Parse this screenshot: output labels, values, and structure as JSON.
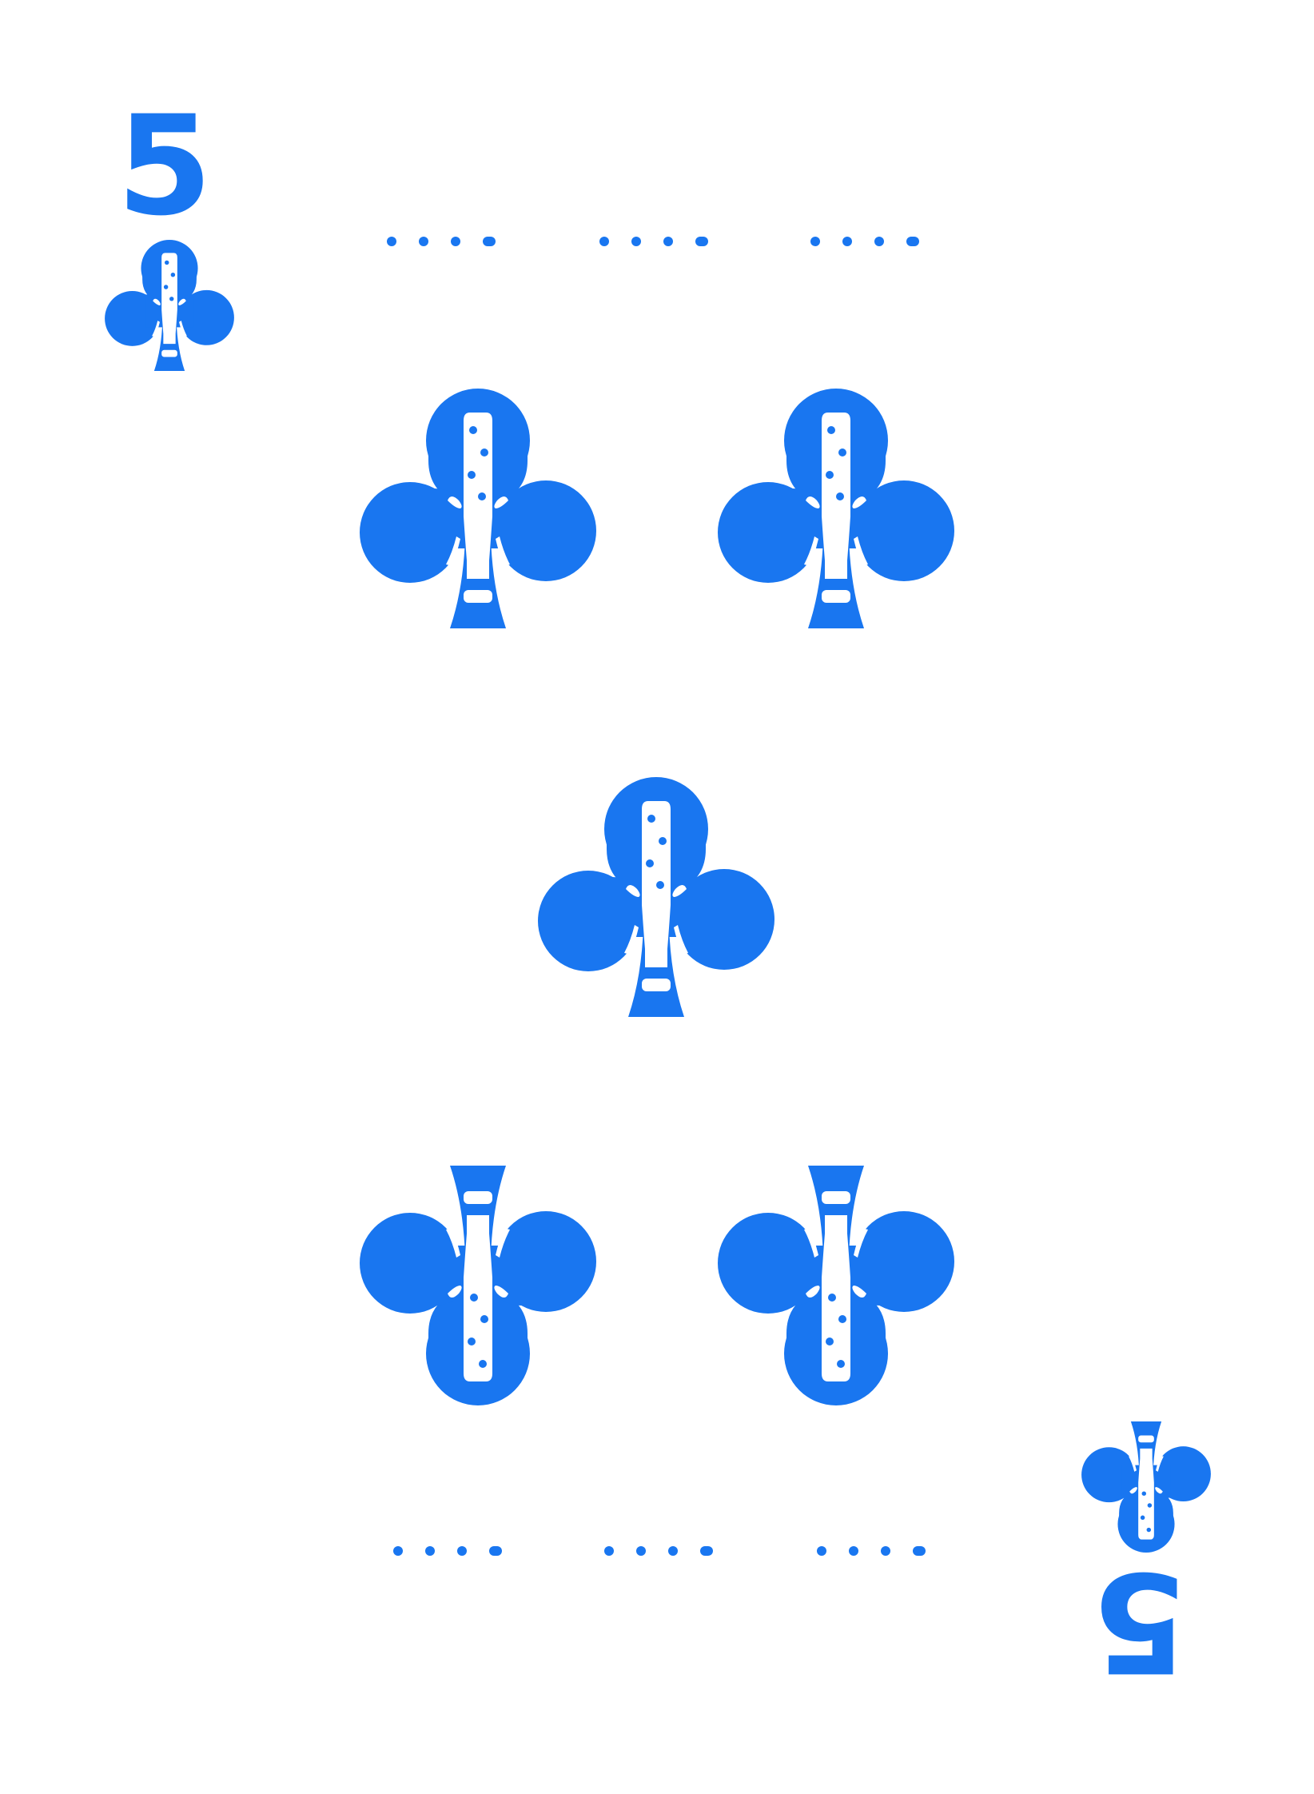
{
  "card": {
    "rank": "5",
    "suit": "clubs",
    "pip_icon": "club-flute-icon",
    "pip_count": 5,
    "colors": {
      "ink": "#1976f0",
      "background": "#ffffff"
    }
  }
}
